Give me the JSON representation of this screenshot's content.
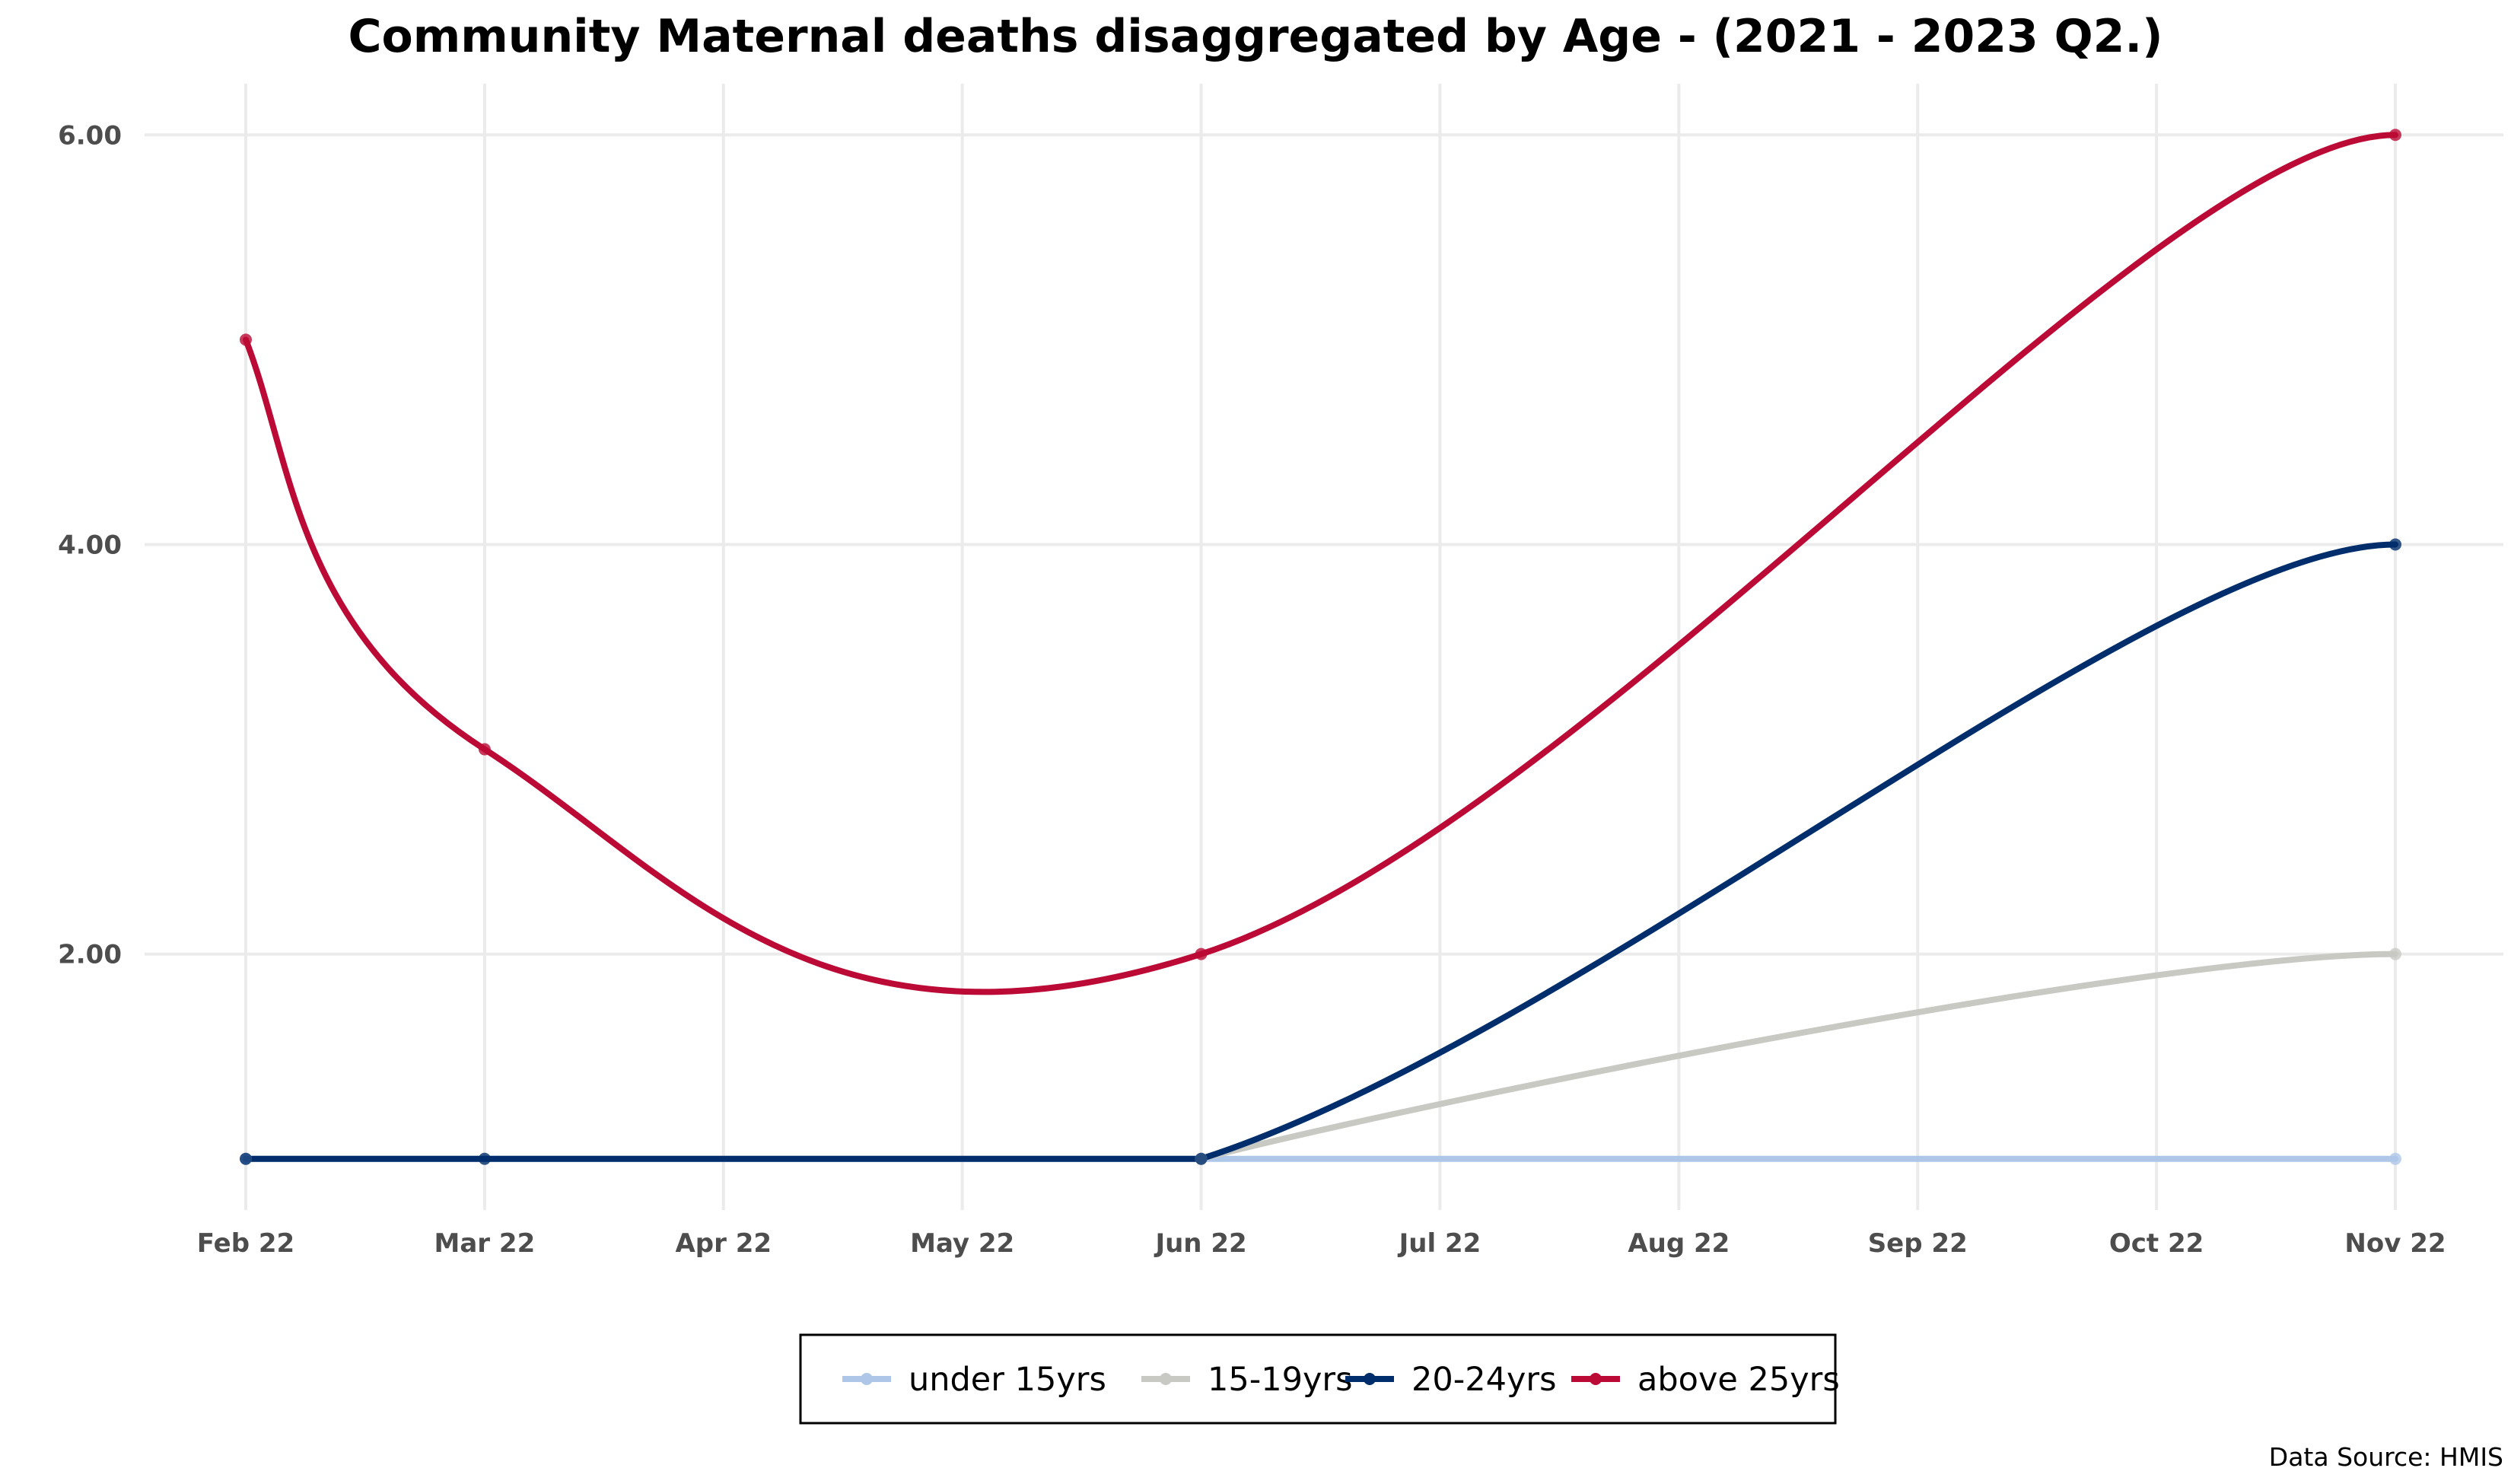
{
  "chart_data": {
    "type": "line",
    "title": "Community Maternal deaths disaggregated by Age - (2021 - 2023 Q2.)",
    "xlabel": "",
    "ylabel": "",
    "categories": [
      "Feb 22",
      "Mar 22",
      "Apr 22",
      "May 22",
      "Jun 22",
      "Jul 22",
      "Aug 22",
      "Sep 22",
      "Oct 22",
      "Nov 22"
    ],
    "y_ticks": [
      "2.00",
      "4.00",
      "6.00"
    ],
    "ylim": [
      0.75,
      6.25
    ],
    "grid": true,
    "legend_position": "bottom",
    "series": [
      {
        "name": "under 15yrs",
        "color": "#aec7e8",
        "points": [
          {
            "x": "Feb 22",
            "y": 1
          },
          {
            "x": "Jun 22",
            "y": 1
          },
          {
            "x": "Nov 22",
            "y": 1
          }
        ]
      },
      {
        "name": "15-19yrs",
        "color": "#c9c9c4",
        "points": [
          {
            "x": "Jun 22",
            "y": 1
          },
          {
            "x": "Nov 22",
            "y": 2
          }
        ]
      },
      {
        "name": "20-24yrs",
        "color": "#002d6b",
        "points": [
          {
            "x": "Feb 22",
            "y": 1
          },
          {
            "x": "Mar 22",
            "y": 1
          },
          {
            "x": "Jun 22",
            "y": 1
          },
          {
            "x": "Nov 22",
            "y": 4
          }
        ]
      },
      {
        "name": "above 25yrs",
        "color": "#bb0a35",
        "points": [
          {
            "x": "Feb 22",
            "y": 5
          },
          {
            "x": "Mar 22",
            "y": 3
          },
          {
            "x": "Jun 22",
            "y": 2
          },
          {
            "x": "Nov 22",
            "y": 6
          }
        ]
      }
    ],
    "caption": "Data Source: HMIS"
  }
}
